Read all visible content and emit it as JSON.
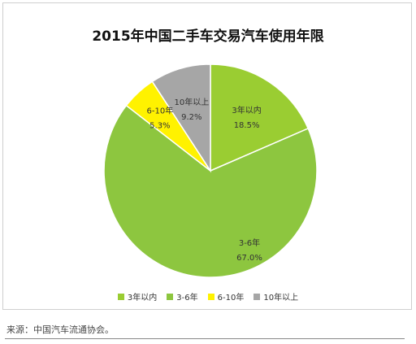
{
  "chart_data": {
    "type": "pie",
    "title": "2015年中国二手车交易汽车使用年限",
    "slices": [
      {
        "label": "3年以内",
        "value": 18.5,
        "value_label": "18.5%",
        "color": "#9ACD32"
      },
      {
        "label": "3-6年",
        "value": 67.0,
        "value_label": "67.0%",
        "color": "#8DC63F"
      },
      {
        "label": "6-10年",
        "value": 5.3,
        "value_label": "5.3%",
        "color": "#FFF200"
      },
      {
        "label": "10年以上",
        "value": 9.2,
        "value_label": "9.2%",
        "color": "#A6A6A6"
      }
    ],
    "legend_position": "bottom",
    "start_angle": "12 o'clock",
    "direction": "clockwise"
  },
  "source_text": "来源：中国汽车流通协会。"
}
